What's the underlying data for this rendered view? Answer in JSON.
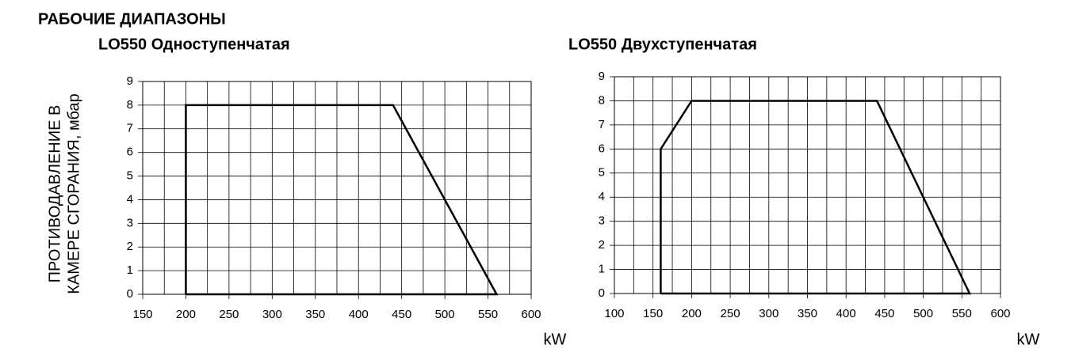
{
  "title": "РАБОЧИЕ ДИАПАЗОНЫ",
  "chart_data": [
    {
      "type": "line",
      "title": "LO550 Одноступенчатая",
      "ylabel": [
        "ПРОТИВОДАВЛЕНИЕ В",
        "КАМЕРЕ СГОРАНИЯ, мбар"
      ],
      "xlabel": "kW",
      "x": [
        200,
        200,
        440,
        560,
        200
      ],
      "values": [
        0,
        8,
        8,
        0,
        0
      ],
      "color": "#000000",
      "xlim": [
        150,
        600
      ],
      "xticks": [
        150,
        200,
        250,
        300,
        350,
        400,
        450,
        500,
        550,
        600
      ],
      "x_minor_grid": [
        175,
        225,
        275,
        325,
        375,
        425,
        475,
        525,
        575
      ],
      "ylim": [
        0,
        9
      ],
      "yticks": [
        0,
        1,
        2,
        3,
        4,
        5,
        6,
        7,
        8,
        9
      ],
      "grid": true
    },
    {
      "type": "line",
      "title": "LO550 Двухступенчатая",
      "xlabel": "kW",
      "x": [
        160,
        160,
        200,
        440,
        560,
        160
      ],
      "values": [
        0,
        6,
        8,
        8,
        0,
        0
      ],
      "color": "#000000",
      "xlim": [
        100,
        600
      ],
      "xticks": [
        100,
        150,
        200,
        250,
        300,
        350,
        400,
        450,
        500,
        550,
        600
      ],
      "x_minor_grid": [
        125,
        175,
        225,
        275,
        325,
        375,
        425,
        475,
        525,
        575
      ],
      "ylim": [
        0,
        9
      ],
      "yticks": [
        0,
        1,
        2,
        3,
        4,
        5,
        6,
        7,
        8,
        9
      ],
      "grid": true
    }
  ]
}
